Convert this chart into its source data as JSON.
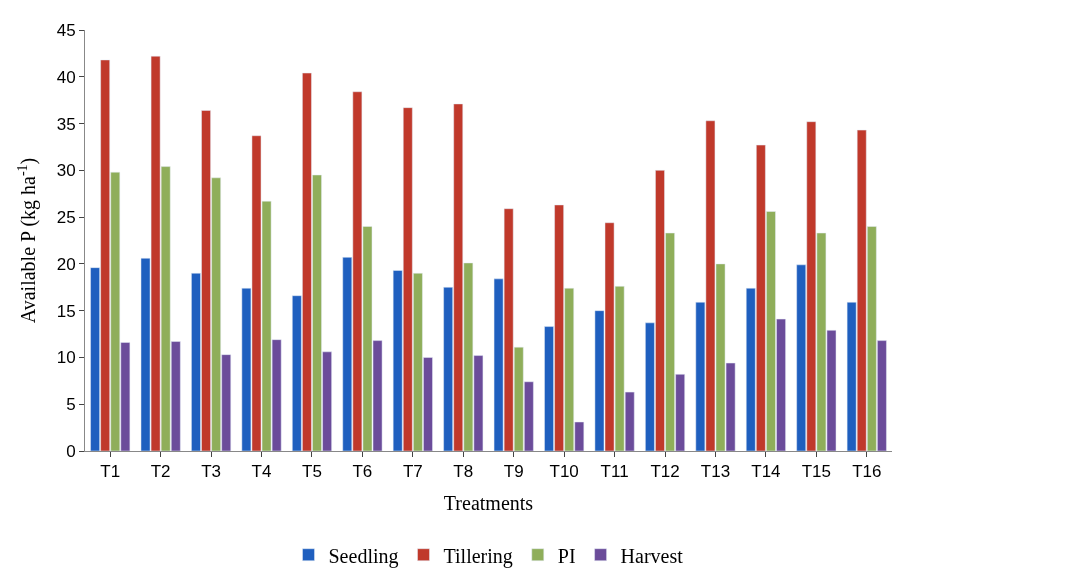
{
  "chart_data": {
    "type": "bar",
    "xlabel": "Treatments",
    "ylabel": "Available P (kg ha$^{-1}$)",
    "categories": [
      "T1",
      "T2",
      "T3",
      "T4",
      "T5",
      "T6",
      "T7",
      "T8",
      "T9",
      "T10",
      "T11",
      "T12",
      "T13",
      "T14",
      "T15",
      "T16"
    ],
    "series": [
      {
        "name": "Seedling",
        "color": "#1f5fbf",
        "values": [
          19.6,
          20.6,
          19.0,
          17.4,
          16.6,
          20.7,
          19.3,
          17.5,
          18.4,
          13.3,
          15.0,
          13.7,
          15.9,
          17.4,
          19.9,
          15.9
        ]
      },
      {
        "name": "Tillering",
        "color": "#c0392b",
        "values": [
          41.8,
          42.2,
          36.4,
          33.7,
          40.4,
          38.4,
          36.7,
          37.1,
          25.9,
          26.3,
          24.4,
          30.0,
          35.3,
          32.7,
          35.2,
          34.3
        ]
      },
      {
        "name": "PI",
        "color": "#8fae5a",
        "values": [
          29.8,
          30.4,
          29.2,
          26.7,
          29.5,
          24.0,
          19.0,
          20.1,
          11.1,
          17.4,
          17.6,
          23.3,
          20.0,
          25.6,
          23.3,
          24.0
        ]
      },
      {
        "name": "Harvest",
        "color": "#6b4c9a",
        "values": [
          11.6,
          11.7,
          10.3,
          11.9,
          10.6,
          11.8,
          10.0,
          10.2,
          7.4,
          3.1,
          6.3,
          8.2,
          9.4,
          14.1,
          12.9,
          11.8
        ]
      }
    ],
    "ylim": [
      0,
      45
    ],
    "yticks": [
      0,
      5,
      10,
      15,
      20,
      25,
      30,
      35,
      40,
      45
    ],
    "grid": false,
    "legend": "bottom"
  }
}
